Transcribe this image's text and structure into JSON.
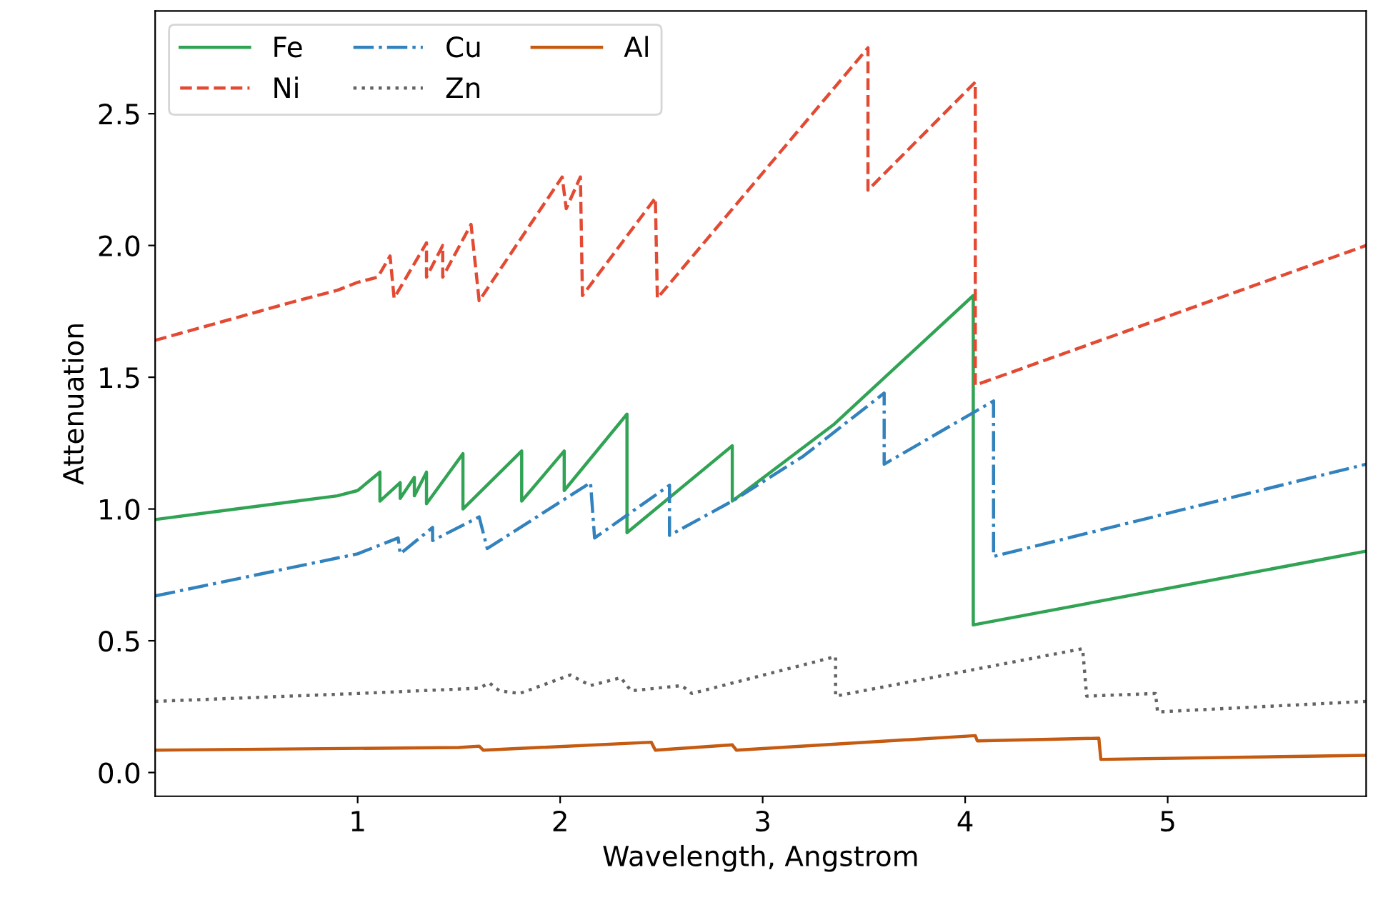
{
  "chart_data": {
    "type": "line",
    "xlabel": "Wavelength, Angstrom",
    "ylabel": "Attenuation",
    "xlim": [
      0,
      5.98
    ],
    "ylim": [
      -0.09,
      2.89
    ],
    "xticks": [
      1,
      2,
      3,
      4,
      5
    ],
    "yticks": [
      {
        "value": 0,
        "label": "0.0"
      },
      {
        "value": 0.5,
        "label": "0.5"
      },
      {
        "value": 1,
        "label": "1.0"
      },
      {
        "value": 1.5,
        "label": "1.5"
      },
      {
        "value": 2,
        "label": "2.0"
      },
      {
        "value": 2.5,
        "label": "2.5"
      }
    ],
    "grid": false,
    "legend": "top left",
    "marker": "none",
    "series": [
      {
        "name": "Fe",
        "color": "#31a354",
        "line_style": "solid",
        "x": [
          0,
          0.7,
          0.9,
          1.0,
          1.11,
          1.11,
          1.21,
          1.21,
          1.28,
          1.28,
          1.34,
          1.34,
          1.52,
          1.52,
          1.81,
          1.81,
          2.02,
          2.02,
          2.33,
          2.33,
          2.85,
          2.85,
          3.35,
          4.04,
          4.04,
          5.98
        ],
        "values": [
          0.96,
          1.03,
          1.05,
          1.07,
          1.14,
          1.03,
          1.1,
          1.04,
          1.12,
          1.05,
          1.14,
          1.02,
          1.21,
          1.0,
          1.22,
          1.03,
          1.22,
          1.07,
          1.36,
          0.91,
          1.24,
          1.03,
          1.32,
          1.81,
          0.56,
          0.84
        ]
      },
      {
        "name": "Ni",
        "color": "#e34a33",
        "line_style": "dashed",
        "x": [
          0,
          0.7,
          0.9,
          1.0,
          1.1,
          1.16,
          1.18,
          1.34,
          1.34,
          1.42,
          1.42,
          1.56,
          1.6,
          2.01,
          2.03,
          2.1,
          2.11,
          2.47,
          2.48,
          3.52,
          3.52,
          4.05,
          4.05,
          5.98
        ],
        "values": [
          1.64,
          1.79,
          1.83,
          1.86,
          1.88,
          1.96,
          1.8,
          2.01,
          1.88,
          2.0,
          1.88,
          2.08,
          1.79,
          2.26,
          2.14,
          2.26,
          1.81,
          2.18,
          1.8,
          2.75,
          2.21,
          2.62,
          1.47,
          2.0
        ]
      },
      {
        "name": "Cu",
        "color": "#3182bd",
        "line_style": "dashdot",
        "x": [
          0,
          1.0,
          1.2,
          1.21,
          1.37,
          1.37,
          1.6,
          1.64,
          2.15,
          2.17,
          2.54,
          2.54,
          2.85,
          3.2,
          3.6,
          3.6,
          4.14,
          4.14,
          5.98
        ],
        "values": [
          0.67,
          0.83,
          0.89,
          0.83,
          0.93,
          0.88,
          0.97,
          0.85,
          1.1,
          0.89,
          1.09,
          0.9,
          1.03,
          1.2,
          1.44,
          1.17,
          1.41,
          0.82,
          1.17
        ]
      },
      {
        "name": "Zn",
        "color": "#636363",
        "line_style": "dotted",
        "x": [
          0,
          1.0,
          1.6,
          1.65,
          1.7,
          1.8,
          2.05,
          2.15,
          2.3,
          2.35,
          2.6,
          2.65,
          3.36,
          3.36,
          4.58,
          4.6,
          4.94,
          4.95,
          5.98
        ],
        "values": [
          0.27,
          0.3,
          0.32,
          0.34,
          0.31,
          0.3,
          0.37,
          0.33,
          0.36,
          0.31,
          0.33,
          0.3,
          0.44,
          0.29,
          0.47,
          0.29,
          0.3,
          0.23,
          0.27
        ]
      },
      {
        "name": "Al",
        "color": "#c55a11",
        "line_style": "solid",
        "x": [
          0,
          1.5,
          1.6,
          1.62,
          2.45,
          2.47,
          2.85,
          2.87,
          4.05,
          4.06,
          4.66,
          4.67,
          5.98
        ],
        "values": [
          0.085,
          0.095,
          0.1,
          0.085,
          0.115,
          0.085,
          0.105,
          0.085,
          0.14,
          0.12,
          0.13,
          0.05,
          0.065
        ]
      }
    ]
  }
}
